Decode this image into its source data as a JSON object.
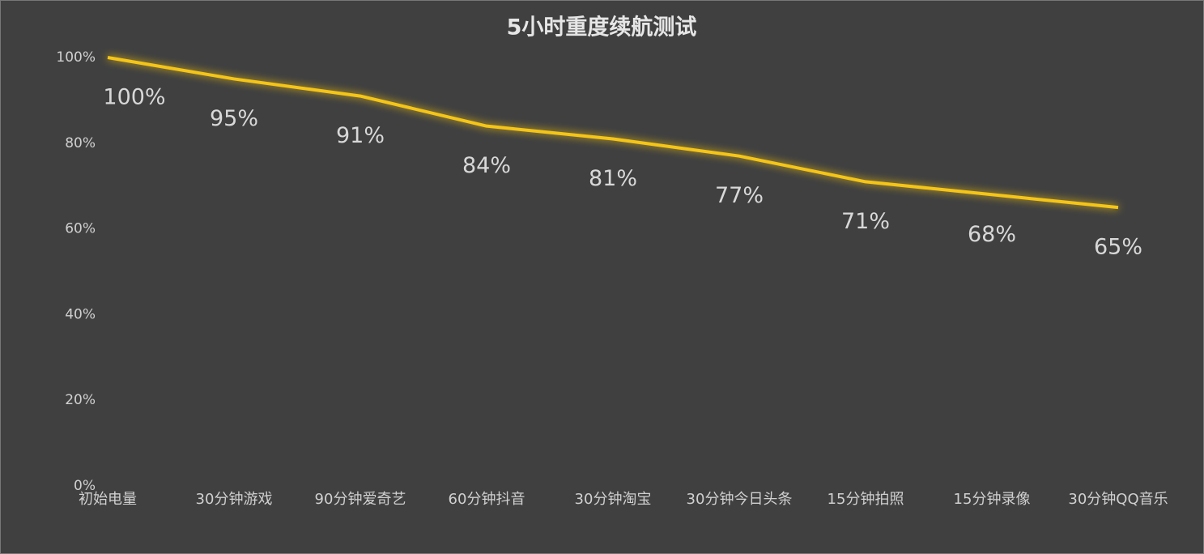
{
  "chart_data": {
    "type": "line",
    "title": "5小时重度续航测试",
    "categories": [
      "初始电量",
      "30分钟游戏",
      "90分钟爱奇艺",
      "60分钟抖音",
      "30分钟淘宝",
      "30分钟今日头条",
      "15分钟拍照",
      "15分钟录像",
      "30分钟QQ音乐"
    ],
    "values": [
      100,
      95,
      91,
      84,
      81,
      77,
      71,
      68,
      65
    ],
    "value_labels": [
      "100%",
      "95%",
      "91%",
      "84%",
      "81%",
      "77%",
      "71%",
      "68%",
      "65%"
    ],
    "color": "#f5c518",
    "ylim": [
      0,
      100
    ],
    "yticks": [
      {
        "value": 0,
        "label": "0%"
      },
      {
        "value": 20,
        "label": "20%"
      },
      {
        "value": 40,
        "label": "40%"
      },
      {
        "value": 60,
        "label": "60%"
      },
      {
        "value": 80,
        "label": "80%"
      },
      {
        "value": 100,
        "label": "100%"
      }
    ],
    "grid": false
  }
}
